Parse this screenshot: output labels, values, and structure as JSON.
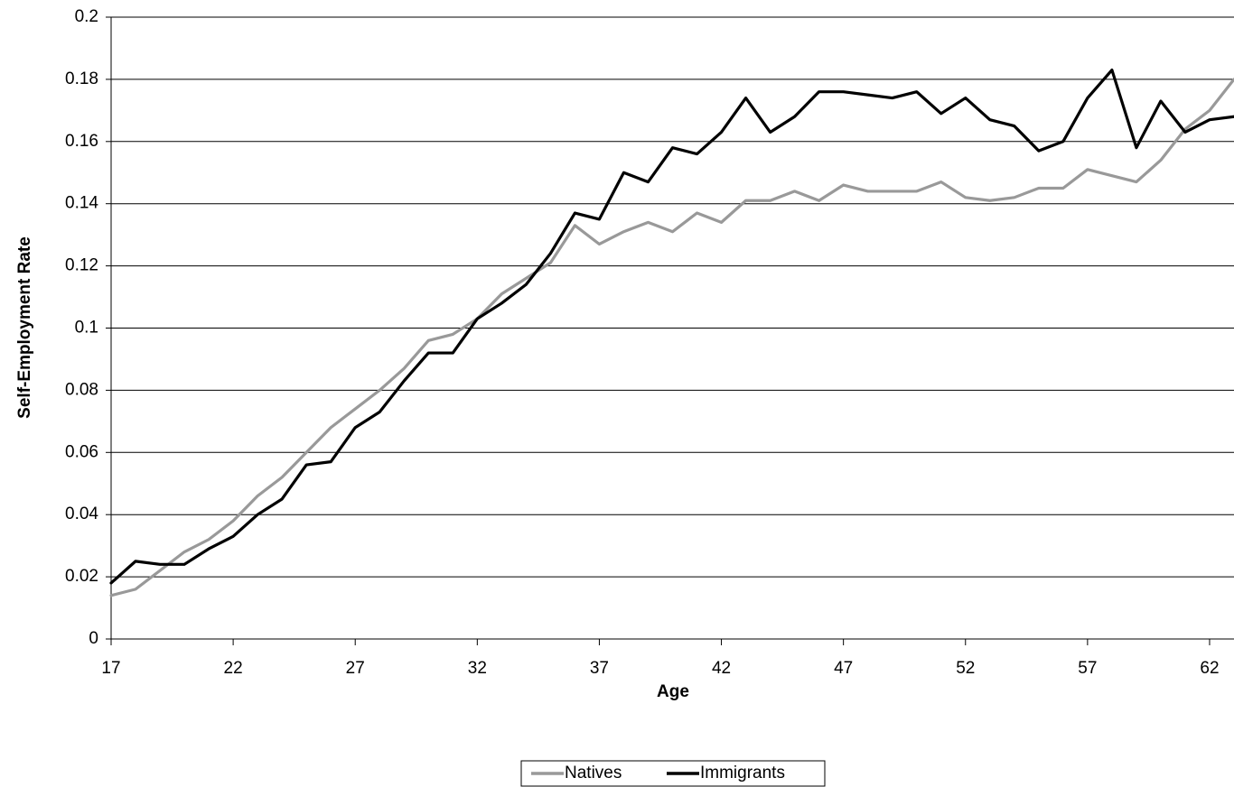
{
  "chart_data": {
    "type": "line",
    "x_label": "Age",
    "y_label": "Self-Employment Rate",
    "x": [
      17,
      18,
      19,
      20,
      21,
      22,
      23,
      24,
      25,
      26,
      27,
      28,
      29,
      30,
      31,
      32,
      33,
      34,
      35,
      36,
      37,
      38,
      39,
      40,
      41,
      42,
      43,
      44,
      45,
      46,
      47,
      48,
      49,
      50,
      51,
      52,
      53,
      54,
      55,
      56,
      57,
      58,
      59,
      60,
      61,
      62,
      63
    ],
    "series": [
      {
        "name": "Natives",
        "color": "#999999",
        "values": [
          0.014,
          0.016,
          0.022,
          0.028,
          0.032,
          0.038,
          0.046,
          0.052,
          0.06,
          0.068,
          0.074,
          0.08,
          0.087,
          0.096,
          0.098,
          0.103,
          0.111,
          0.116,
          0.121,
          0.133,
          0.127,
          0.131,
          0.134,
          0.131,
          0.137,
          0.134,
          0.141,
          0.141,
          0.144,
          0.141,
          0.146,
          0.144,
          0.144,
          0.144,
          0.147,
          0.142,
          0.141,
          0.142,
          0.145,
          0.145,
          0.151,
          0.149,
          0.147,
          0.154,
          0.164,
          0.17,
          0.18
        ]
      },
      {
        "name": "Immigrants",
        "color": "#000000",
        "values": [
          0.018,
          0.025,
          0.024,
          0.024,
          0.029,
          0.033,
          0.04,
          0.045,
          0.056,
          0.057,
          0.068,
          0.073,
          0.083,
          0.092,
          0.092,
          0.103,
          0.108,
          0.114,
          0.124,
          0.137,
          0.135,
          0.15,
          0.147,
          0.158,
          0.156,
          0.163,
          0.174,
          0.163,
          0.168,
          0.176,
          0.176,
          0.175,
          0.174,
          0.176,
          0.169,
          0.174,
          0.167,
          0.165,
          0.157,
          0.16,
          0.174,
          0.183,
          0.158,
          0.173,
          0.163,
          0.167,
          0.168
        ]
      }
    ],
    "xlim": [
      17,
      63
    ],
    "xticks": [
      17,
      22,
      27,
      32,
      37,
      42,
      47,
      52,
      57,
      62
    ],
    "ylim": [
      0,
      0.2
    ],
    "yticks": [
      0,
      0.02,
      0.04,
      0.06,
      0.08,
      0.1,
      0.12,
      0.14,
      0.16,
      0.18,
      0.2
    ],
    "grid": true,
    "legend": "bottom"
  }
}
